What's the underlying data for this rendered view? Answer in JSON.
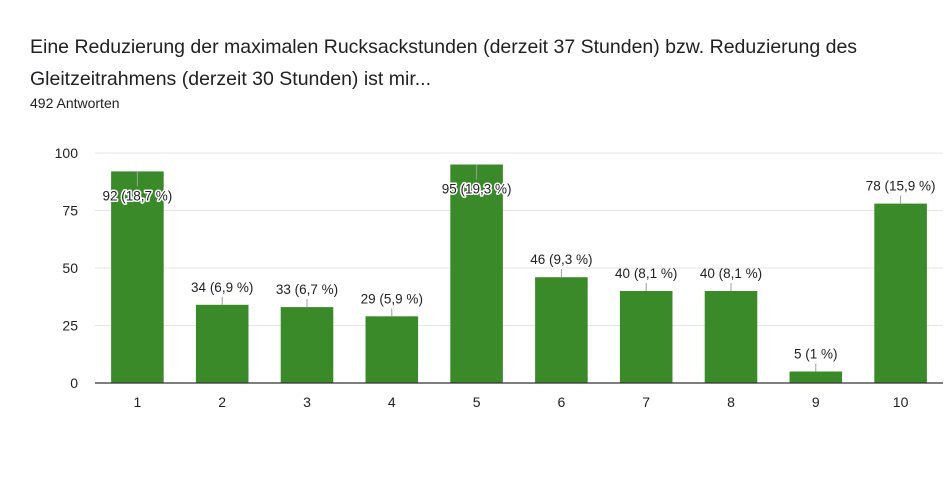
{
  "header": {
    "title": "Eine Reduzierung der maximalen Rucksackstunden (derzeit 37 Stunden) bzw. Reduzierung des Gleitzeitrahmens (derzeit 30 Stunden) ist mir...",
    "responses": "492 Antworten"
  },
  "chart_data": {
    "type": "bar",
    "categories": [
      "1",
      "2",
      "3",
      "4",
      "5",
      "6",
      "7",
      "8",
      "9",
      "10"
    ],
    "values": [
      92,
      34,
      33,
      29,
      95,
      46,
      40,
      40,
      5,
      78
    ],
    "data_labels": [
      "92 (18,7 %)",
      "34 (6,9 %)",
      "33 (6,7 %)",
      "29 (5,9 %)",
      "95 (19,3 %)",
      "46 (9,3 %)",
      "40 (8,1 %)",
      "40 (8,1 %)",
      "5 (1 %)",
      "78 (15,9 %)"
    ],
    "yticks": [
      "0",
      "25",
      "50",
      "75",
      "100"
    ],
    "ylim": [
      0,
      100
    ],
    "grid": true,
    "colors": {
      "bar": "#3a8a2a",
      "grid": "#e6e6e6",
      "axis": "#333333"
    }
  }
}
